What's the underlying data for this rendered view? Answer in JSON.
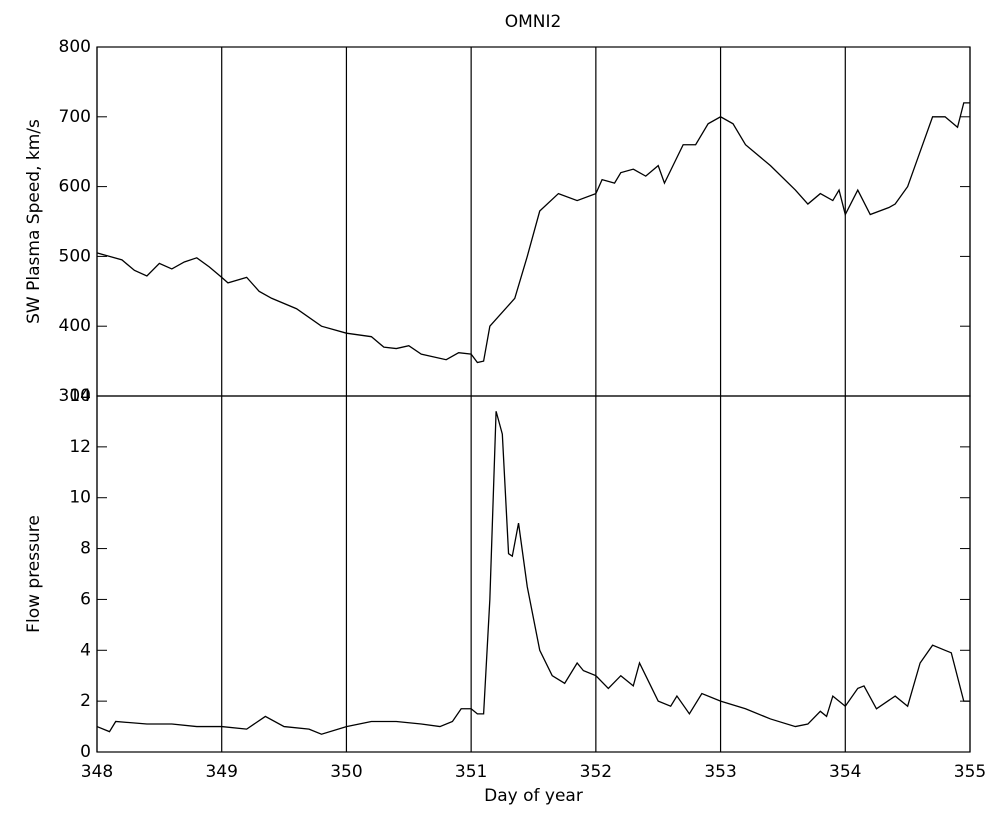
{
  "chart_data": [
    {
      "type": "line",
      "title": "OMNI2",
      "ylabel": "SW Plasma Speed, km/s",
      "xlim": [
        348,
        355
      ],
      "xticks": [
        348,
        349,
        350,
        351,
        352,
        353,
        354,
        355
      ],
      "xtick_labels": false,
      "ylim": [
        300,
        800
      ],
      "yticks": [
        300,
        400,
        500,
        600,
        700,
        800
      ],
      "grid": true,
      "color": "#000000",
      "x": [
        348.0,
        348.1,
        348.2,
        348.3,
        348.4,
        348.5,
        348.6,
        348.7,
        348.8,
        348.9,
        349.0,
        349.05,
        349.2,
        349.3,
        349.4,
        349.6,
        349.8,
        350.0,
        350.2,
        350.3,
        350.4,
        350.5,
        350.6,
        350.8,
        350.9,
        351.0,
        351.05,
        351.1,
        351.15,
        351.3,
        351.35,
        351.45,
        351.55,
        351.7,
        351.85,
        352.0,
        352.05,
        352.15,
        352.2,
        352.3,
        352.4,
        352.5,
        352.55,
        352.7,
        352.8,
        352.9,
        353.0,
        353.1,
        353.2,
        353.4,
        353.6,
        353.7,
        353.8,
        353.9,
        353.95,
        354.0,
        354.1,
        354.2,
        354.35,
        354.4,
        354.5,
        354.6,
        354.7,
        354.8,
        354.9,
        354.95,
        355.0
      ],
      "values": [
        505,
        500,
        495,
        480,
        472,
        490,
        482,
        492,
        498,
        485,
        470,
        462,
        470,
        450,
        440,
        425,
        400,
        390,
        385,
        370,
        368,
        372,
        360,
        352,
        362,
        360,
        348,
        350,
        400,
        430,
        440,
        500,
        565,
        590,
        580,
        590,
        610,
        605,
        620,
        625,
        615,
        630,
        605,
        660,
        660,
        690,
        700,
        690,
        660,
        630,
        595,
        575,
        590,
        580,
        595,
        560,
        595,
        560,
        570,
        575,
        600,
        650,
        700,
        700,
        685,
        720,
        720
      ]
    },
    {
      "type": "line",
      "ylabel": "Flow pressure",
      "xlabel": "Day of year",
      "xlim": [
        348,
        355
      ],
      "xticks": [
        348,
        349,
        350,
        351,
        352,
        353,
        354,
        355
      ],
      "xtick_labels": true,
      "ylim": [
        0,
        14
      ],
      "yticks": [
        0,
        2,
        4,
        6,
        8,
        10,
        12,
        14
      ],
      "grid": true,
      "color": "#000000",
      "x": [
        348.0,
        348.1,
        348.15,
        348.4,
        348.6,
        348.8,
        349.0,
        349.2,
        349.35,
        349.5,
        349.7,
        349.8,
        350.0,
        350.2,
        350.4,
        350.6,
        350.75,
        350.85,
        350.92,
        351.0,
        351.05,
        351.1,
        351.15,
        351.2,
        351.25,
        351.3,
        351.33,
        351.38,
        351.45,
        351.55,
        351.65,
        351.75,
        351.85,
        351.9,
        352.0,
        352.1,
        352.2,
        352.3,
        352.35,
        352.45,
        352.5,
        352.6,
        352.65,
        352.75,
        352.85,
        353.0,
        353.2,
        353.4,
        353.6,
        353.7,
        353.8,
        353.85,
        353.9,
        354.0,
        354.1,
        354.15,
        354.25,
        354.4,
        354.5,
        354.6,
        354.7,
        354.8,
        354.85,
        354.95,
        355.0
      ],
      "values": [
        1.0,
        0.8,
        1.2,
        1.1,
        1.1,
        1.0,
        1.0,
        0.9,
        1.4,
        1.0,
        0.9,
        0.7,
        1.0,
        1.2,
        1.2,
        1.1,
        1.0,
        1.2,
        1.7,
        1.7,
        1.5,
        1.5,
        6.0,
        13.4,
        12.5,
        7.8,
        7.7,
        9.0,
        6.5,
        4.0,
        3.0,
        2.7,
        3.5,
        3.2,
        3.0,
        2.5,
        3.0,
        2.6,
        3.5,
        2.5,
        2.0,
        1.8,
        2.2,
        1.5,
        2.3,
        2.0,
        1.7,
        1.3,
        1.0,
        1.1,
        1.6,
        1.4,
        2.2,
        1.8,
        2.5,
        2.6,
        1.7,
        2.2,
        1.8,
        3.5,
        4.2,
        4.0,
        3.9,
        2.0,
        2.0
      ]
    }
  ]
}
